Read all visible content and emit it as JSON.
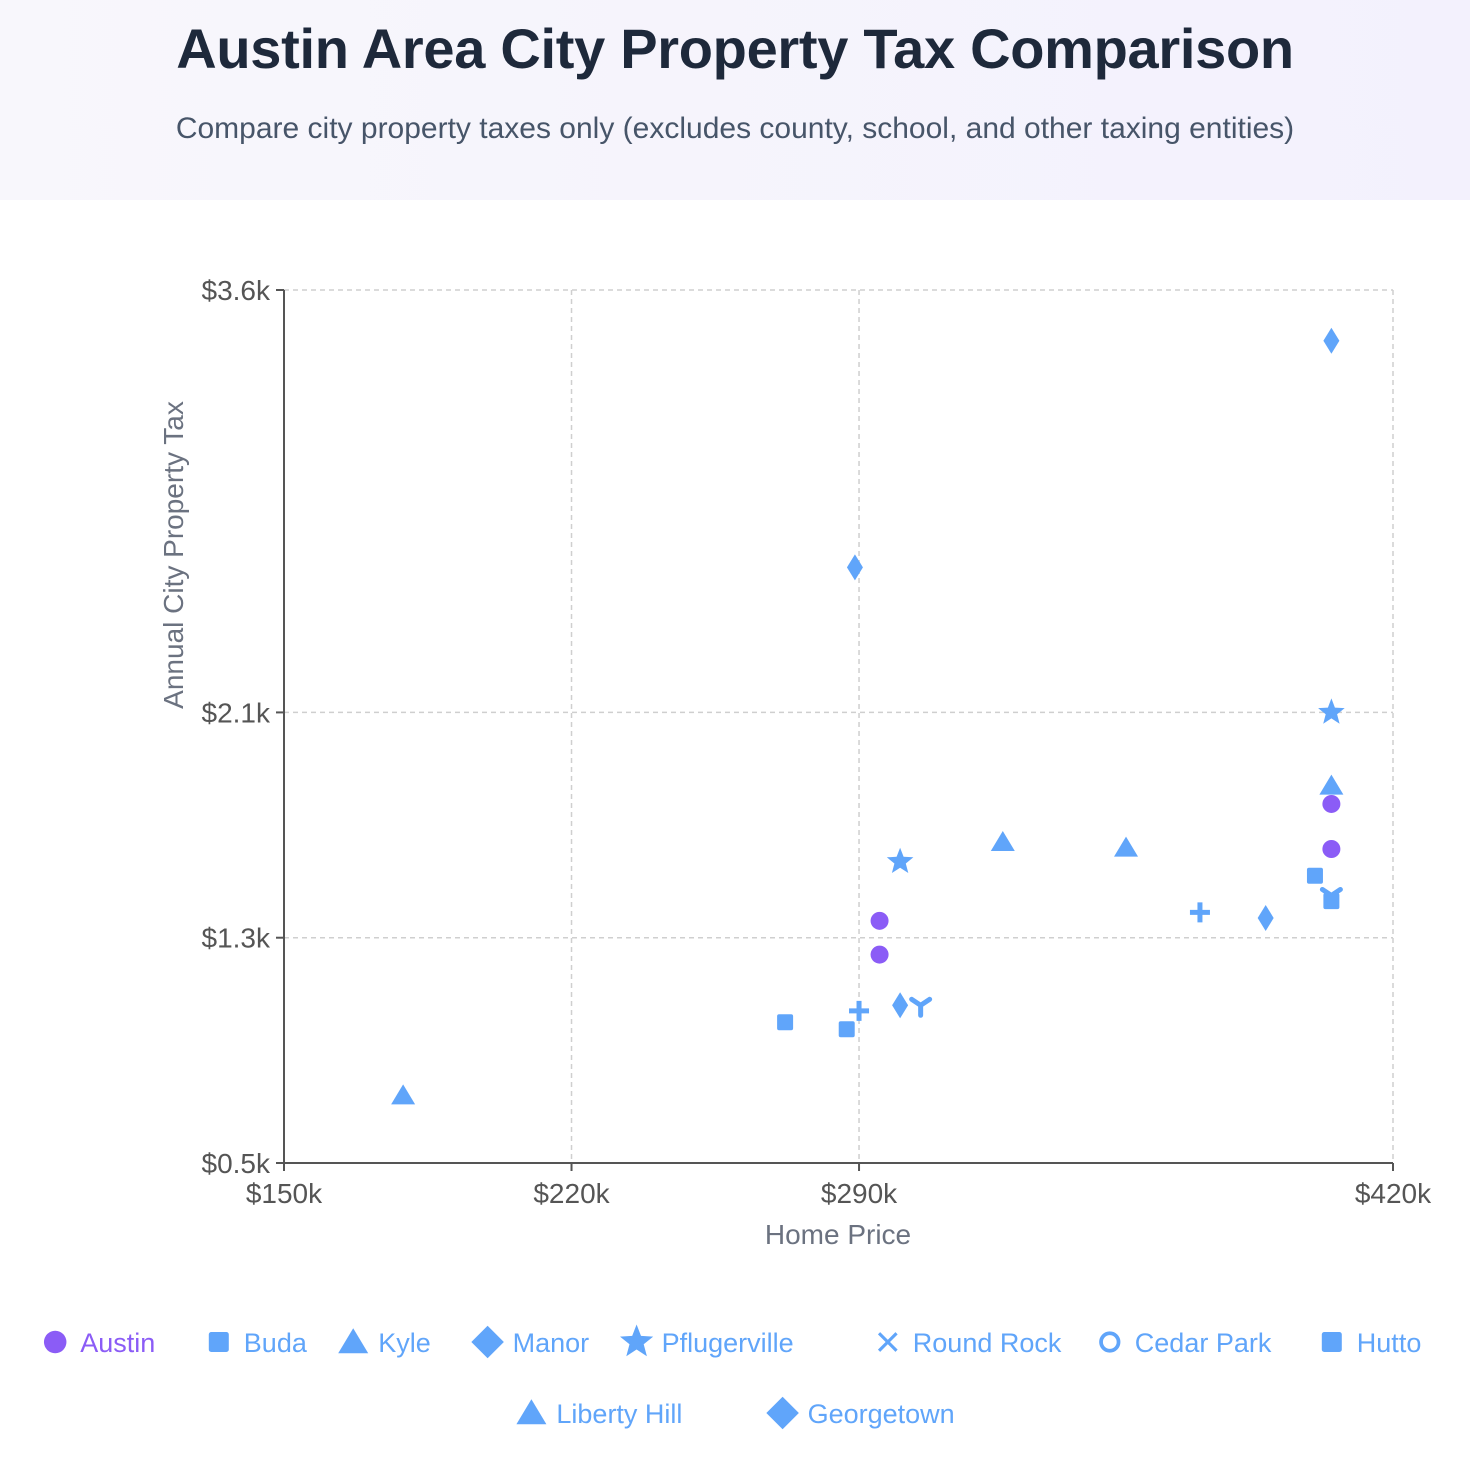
{
  "header": {
    "title": "Austin Area City Property Tax Comparison",
    "subtitle": "Compare city property taxes only (excludes county, school, and other taxing entities)"
  },
  "chart_data": {
    "type": "scatter",
    "title": "Austin Area City Property Tax Comparison",
    "subtitle": "Compare city property taxes only (excludes county, school, and other taxing entities)",
    "xlabel": "Home Price",
    "ylabel": "Annual City Property Tax",
    "xlim": [
      150000,
      420000
    ],
    "ylim": [
      500,
      3600
    ],
    "xticks": [
      150000,
      220000,
      290000,
      420000
    ],
    "xtick_labels": [
      "$150k",
      "$220k",
      "$290k",
      "$420k"
    ],
    "yticks": [
      500,
      1300,
      2100,
      3600
    ],
    "ytick_labels": [
      "$0.5k",
      "$1.3k",
      "$2.1k",
      "$3.6k"
    ],
    "grid": true,
    "legend_position": "bottom",
    "colors": {
      "austin": "#8b5cf6",
      "others": "#60a5fa"
    },
    "series": [
      {
        "name": "Austin",
        "marker": "circle",
        "color": "#8b5cf6",
        "points": [
          [
            295000,
            1360
          ],
          [
            295000,
            1240
          ],
          [
            405000,
            1775
          ],
          [
            405000,
            1615
          ]
        ]
      },
      {
        "name": "Buda",
        "marker": "square",
        "color": "#60a5fa",
        "points": [
          [
            272000,
            1000
          ],
          [
            287000,
            975
          ],
          [
            401000,
            1520
          ]
        ]
      },
      {
        "name": "Kyle",
        "marker": "triangle",
        "color": "#60a5fa",
        "points": [
          [
            179000,
            740
          ],
          [
            325000,
            1640
          ],
          [
            355000,
            1620
          ],
          [
            405000,
            1840
          ]
        ]
      },
      {
        "name": "Manor",
        "marker": "thin-diamond",
        "color": "#60a5fa",
        "points": [
          [
            289000,
            2615
          ],
          [
            300000,
            1060
          ],
          [
            389000,
            1370
          ],
          [
            405000,
            3420
          ]
        ]
      },
      {
        "name": "Pflugerville",
        "marker": "star",
        "color": "#60a5fa",
        "points": [
          [
            300000,
            1570
          ],
          [
            405000,
            2100
          ]
        ]
      },
      {
        "name": "Round Rock",
        "marker": "tri-x",
        "color": "#60a5fa",
        "points": [
          [
            305000,
            1060
          ],
          [
            405000,
            1450
          ]
        ]
      },
      {
        "name": "Cedar Park",
        "marker": "plus",
        "color": "#60a5fa",
        "points": [
          [
            290000,
            1040
          ],
          [
            373000,
            1390
          ]
        ]
      },
      {
        "name": "Hutto",
        "marker": "square",
        "color": "#60a5fa",
        "points": [
          [
            405000,
            1430
          ]
        ]
      },
      {
        "name": "Liberty Hill",
        "marker": "triangle",
        "color": "#60a5fa",
        "points": []
      },
      {
        "name": "Georgetown",
        "marker": "diamond",
        "color": "#60a5fa",
        "points": []
      }
    ],
    "legend": [
      {
        "label": "Austin",
        "icon": "filled-circle",
        "color": "#8b5cf6"
      },
      {
        "label": "Buda",
        "icon": "filled-square",
        "color": "#60a5fa"
      },
      {
        "label": "Kyle",
        "icon": "filled-triangle",
        "color": "#60a5fa"
      },
      {
        "label": "Manor",
        "icon": "filled-diamond",
        "color": "#60a5fa"
      },
      {
        "label": "Pflugerville",
        "icon": "filled-star",
        "color": "#60a5fa"
      },
      {
        "label": "Round Rock",
        "icon": "x-cross",
        "color": "#60a5fa"
      },
      {
        "label": "Cedar Park",
        "icon": "ring",
        "color": "#60a5fa"
      },
      {
        "label": "Hutto",
        "icon": "filled-square",
        "color": "#60a5fa"
      },
      {
        "label": "Liberty Hill",
        "icon": "filled-triangle",
        "color": "#60a5fa"
      },
      {
        "label": "Georgetown",
        "icon": "filled-diamond",
        "color": "#60a5fa"
      }
    ]
  }
}
